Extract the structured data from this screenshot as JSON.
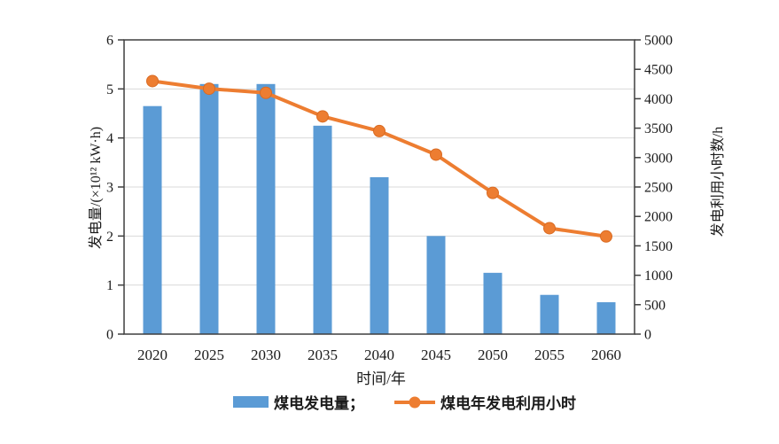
{
  "page": {
    "background": "#ffffff"
  },
  "chart_data": {
    "type": "bar",
    "title": "",
    "categories": [
      "2020",
      "2025",
      "2030",
      "2035",
      "2040",
      "2045",
      "2050",
      "2055",
      "2060"
    ],
    "series": [
      {
        "name": "煤电发电量",
        "type": "bar",
        "axis": "left",
        "values": [
          4.65,
          5.1,
          5.1,
          4.25,
          3.2,
          2.0,
          1.25,
          0.8,
          0.65
        ]
      },
      {
        "name": "煤电年发电利用小时",
        "type": "line",
        "axis": "right",
        "values": [
          4300,
          4170,
          4100,
          3700,
          3450,
          3050,
          2400,
          1800,
          1660
        ]
      }
    ],
    "xlabel": "时间/年",
    "ylabel_left": "发电量/(×10¹² kW·h)",
    "ylabel_right": "发电利用小时数/h",
    "ylim_left": [
      0,
      6
    ],
    "ylim_right": [
      0,
      5000
    ],
    "yticks_left": [
      0,
      1,
      2,
      3,
      4,
      5,
      6
    ],
    "yticks_right": [
      0,
      500,
      1000,
      1500,
      2000,
      2500,
      3000,
      3500,
      4000,
      4500,
      5000
    ],
    "grid": true,
    "legend_position": "bottom",
    "colors": {
      "bar": "#5b9bd5",
      "line": "#ed7d31",
      "marker_edge": "#d96b23",
      "frame": "#3f3f3f",
      "grid": "#d9d9d9",
      "text": "#1a1a1a"
    }
  },
  "legend": {
    "bar_label": "煤电发电量；",
    "line_label": "煤电年发电利用小时"
  }
}
